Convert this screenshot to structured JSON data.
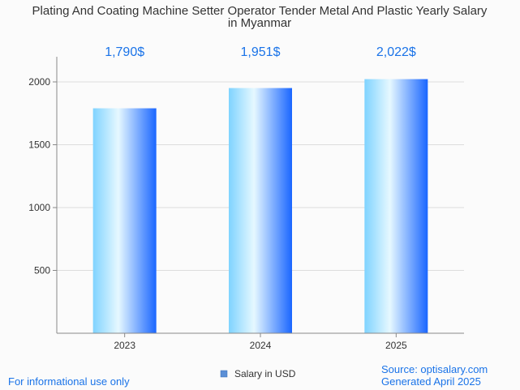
{
  "chart_data": {
    "type": "bar",
    "title": "Plating And Coating Machine Setter Operator Tender Metal And Plastic Yearly Salary in Myanmar",
    "title_lines": [
      "Plating And Coating Machine Setter Operator Tender Metal And Plastic Yearly Salary",
      "in Myanmar"
    ],
    "categories": [
      "2023",
      "2024",
      "2025"
    ],
    "series": [
      {
        "name": "Salary in USD",
        "values": [
          1790,
          1951,
          2022
        ]
      }
    ],
    "data_labels": [
      "1,790$",
      "1,951$",
      "2,022$"
    ],
    "y_ticks": [
      500,
      1000,
      1500,
      2000
    ],
    "ylim": [
      0,
      2200
    ],
    "grid": true,
    "legend_position": "bottom",
    "xlabel": "",
    "ylabel": ""
  },
  "colors": {
    "bar_light": "#e6f8ff",
    "bar_mid": "#7fd3ff",
    "bar_dark": "#1a66ff",
    "label": "#1a73e8",
    "grid": "#dddddd",
    "axis": "#888888",
    "legend_swatch": "#5b8fd6"
  },
  "footer": {
    "left": "For informational use only",
    "right_line1": "Source: optisalary.com",
    "right_line2": "Generated April 2025"
  },
  "legend": {
    "label": "Salary in USD"
  }
}
